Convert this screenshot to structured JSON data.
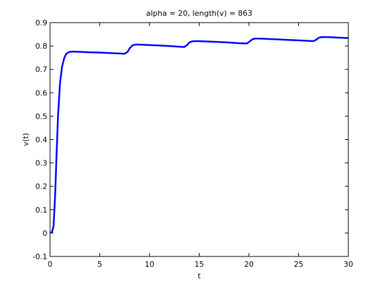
{
  "chart_data": {
    "type": "line",
    "title": "alpha = 20, length(v) = 863",
    "xlabel": "t",
    "ylabel": "v(t)",
    "xlim": [
      0,
      30
    ],
    "ylim": [
      -0.1,
      0.9
    ],
    "x_ticks": [
      0,
      5,
      10,
      15,
      20,
      25,
      30
    ],
    "y_ticks": [
      -0.1,
      0,
      0.1,
      0.2,
      0.3,
      0.4,
      0.5,
      0.6,
      0.7,
      0.8,
      0.9
    ],
    "x_tick_labels": [
      "0",
      "5",
      "10",
      "15",
      "20",
      "25",
      "30"
    ],
    "y_tick_labels": [
      "-0.1",
      "0",
      "0.1",
      "0.2",
      "0.3",
      "0.4",
      "0.5",
      "0.6",
      "0.7",
      "0.8",
      "0.9"
    ],
    "grid": false,
    "series": [
      {
        "color": "#0000ff",
        "x": [
          0,
          0.2,
          0.35,
          0.5,
          0.65,
          0.8,
          1.0,
          1.2,
          1.4,
          1.6,
          1.8,
          2.0,
          2.3,
          3,
          4,
          5,
          6,
          7,
          7.5,
          7.8,
          8.0,
          8.3,
          8.6,
          9,
          10,
          11,
          12,
          13,
          13.5,
          13.8,
          14.0,
          14.3,
          14.6,
          15,
          16,
          17,
          18,
          19,
          19.8,
          20.1,
          20.4,
          20.7,
          21.0,
          22,
          23,
          24,
          25,
          26,
          26.5,
          26.8,
          27.0,
          27.3,
          27.6,
          28,
          29,
          30
        ],
        "y": [
          0.0,
          0.005,
          0.03,
          0.15,
          0.33,
          0.5,
          0.64,
          0.71,
          0.745,
          0.765,
          0.772,
          0.775,
          0.776,
          0.775,
          0.773,
          0.772,
          0.77,
          0.768,
          0.767,
          0.775,
          0.79,
          0.803,
          0.806,
          0.806,
          0.804,
          0.802,
          0.8,
          0.797,
          0.796,
          0.805,
          0.815,
          0.82,
          0.821,
          0.821,
          0.819,
          0.817,
          0.815,
          0.812,
          0.811,
          0.82,
          0.83,
          0.832,
          0.832,
          0.83,
          0.828,
          0.826,
          0.824,
          0.822,
          0.821,
          0.828,
          0.835,
          0.838,
          0.838,
          0.838,
          0.836,
          0.834
        ]
      }
    ]
  }
}
